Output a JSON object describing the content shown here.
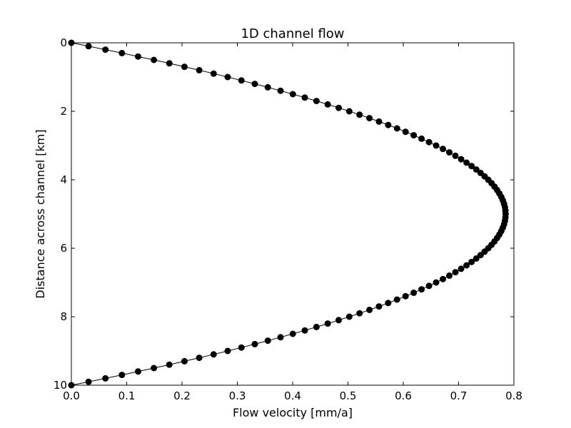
{
  "chart_data": {
    "type": "line",
    "title": "1D channel flow",
    "xlabel": "Flow velocity [mm/a]",
    "ylabel": "Distance across channel [km]",
    "xlim": [
      0.0,
      0.8
    ],
    "ylim": [
      10,
      0
    ],
    "y_inverted": true,
    "grid": false,
    "legend": "none",
    "xticks": [
      "0.0",
      "0.1",
      "0.2",
      "0.3",
      "0.4",
      "0.5",
      "0.6",
      "0.7",
      "0.8"
    ],
    "yticks": [
      "0",
      "2",
      "4",
      "6",
      "8",
      "10"
    ],
    "series": [
      {
        "marker": "circle",
        "color": "#000000",
        "profile": "parabolic",
        "y_start": 0,
        "y_end": 10,
        "y_step": 0.1,
        "max_velocity": 0.785,
        "max_velocity_at": 5
      }
    ]
  }
}
